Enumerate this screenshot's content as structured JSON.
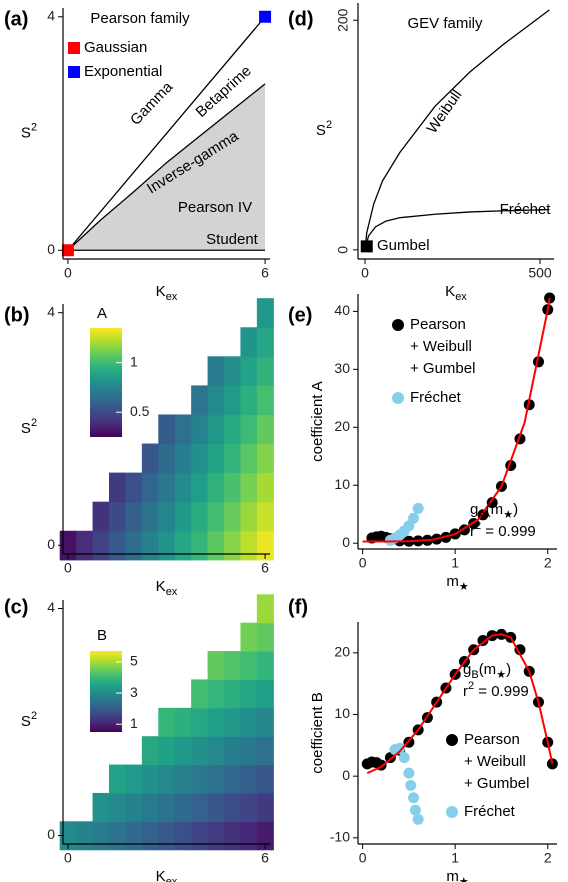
{
  "chart_data": [
    {
      "type": "line",
      "panel_label": "(a)",
      "title": "Pearson family",
      "xlabel": "K",
      "xlabel_sub": "ex",
      "ylabel": "S",
      "ylabel_sup": "2",
      "xlim": [
        -0.15,
        6.15
      ],
      "ylim": [
        -0.15,
        4.15
      ],
      "xticks": [
        0,
        6
      ],
      "yticks": [
        0,
        4
      ],
      "series": [
        {
          "color": "#000000",
          "x": [
            0,
            6
          ],
          "y": [
            0,
            4
          ]
        },
        {
          "color": "#000000",
          "fill": "#d3d3d3",
          "x": [
            0,
            1,
            2,
            3,
            4,
            5,
            6
          ],
          "y": [
            0,
            0.52,
            1.0,
            1.5,
            1.95,
            2.4,
            2.85
          ]
        },
        {
          "color": "#000000",
          "x": [
            0,
            6
          ],
          "y": [
            0,
            0
          ]
        }
      ],
      "points": [
        {
          "name": "Gaussian",
          "color": "#ff0000",
          "x": 0,
          "y": 0
        },
        {
          "name": "Exponential",
          "color": "#0000ff",
          "x": 6,
          "y": 4
        }
      ],
      "annotations": [
        "Gamma",
        "Betaprime",
        "Inverse-gamma",
        "Pearson IV",
        "Student"
      ]
    },
    {
      "type": "heatmap",
      "panel_label": "(b)",
      "xlabel": "K",
      "xlabel_sub": "ex",
      "ylabel": "S",
      "ylabel_sup": "2",
      "xlim": [
        -0.15,
        6.15
      ],
      "ylim": [
        -0.15,
        4.15
      ],
      "xticks": [
        0,
        6
      ],
      "yticks": [
        0,
        4
      ],
      "x": [
        0,
        0.5,
        1,
        1.5,
        2,
        2.5,
        3,
        3.5,
        4,
        4.5,
        5,
        5.5,
        6
      ],
      "y": [
        0,
        0.5,
        1,
        1.5,
        2,
        2.5,
        3,
        3.5,
        4
      ],
      "z": [
        [
          0.3,
          0.39,
          0.47,
          0.56,
          0.64,
          0.73,
          0.81,
          0.9,
          0.98,
          1.07,
          1.15,
          1.24,
          1.32
        ],
        [
          null,
          null,
          0.41,
          0.5,
          0.58,
          0.67,
          0.75,
          0.84,
          0.92,
          1.01,
          1.09,
          1.18,
          1.26
        ],
        [
          null,
          null,
          null,
          0.44,
          0.52,
          0.61,
          0.69,
          0.78,
          0.86,
          0.95,
          1.03,
          1.12,
          1.2
        ],
        [
          null,
          null,
          null,
          null,
          null,
          0.55,
          0.63,
          0.72,
          0.8,
          0.89,
          0.97,
          1.06,
          1.14
        ],
        [
          null,
          null,
          null,
          null,
          null,
          null,
          0.57,
          0.66,
          0.74,
          0.83,
          0.91,
          1.0,
          1.08
        ],
        [
          null,
          null,
          null,
          null,
          null,
          null,
          null,
          null,
          0.68,
          0.77,
          0.85,
          0.94,
          1.02
        ],
        [
          null,
          null,
          null,
          null,
          null,
          null,
          null,
          null,
          null,
          0.71,
          0.79,
          0.88,
          0.96
        ],
        [
          null,
          null,
          null,
          null,
          null,
          null,
          null,
          null,
          null,
          null,
          null,
          0.82,
          0.9
        ],
        [
          null,
          null,
          null,
          null,
          null,
          null,
          null,
          null,
          null,
          null,
          null,
          null,
          0.84
        ]
      ],
      "colormap": "viridis",
      "colorbar_title": "A",
      "zlim": [
        0.25,
        1.35
      ],
      "zticks": [
        0.5,
        1
      ]
    },
    {
      "type": "heatmap",
      "panel_label": "(c)",
      "xlabel": "K",
      "xlabel_sub": "ex",
      "ylabel": "S",
      "ylabel_sup": "2",
      "xlim": [
        -0.15,
        6.15
      ],
      "ylim": [
        -0.15,
        4.15
      ],
      "xticks": [
        0,
        6
      ],
      "yticks": [
        0,
        4
      ],
      "x": [
        0,
        0.5,
        1,
        1.5,
        2,
        2.5,
        3,
        3.5,
        4,
        4.5,
        5,
        5.5,
        6
      ],
      "y": [
        0,
        0.5,
        1,
        1.5,
        2,
        2.5,
        3,
        3.5,
        4
      ],
      "z": [
        [
          3,
          2.83,
          2.65,
          2.48,
          2.3,
          2.13,
          1.95,
          1.78,
          1.6,
          1.43,
          1.25,
          1.08,
          0.9
        ],
        [
          null,
          null,
          3.15,
          2.98,
          2.8,
          2.63,
          2.45,
          2.28,
          2.1,
          1.93,
          1.75,
          1.58,
          1.4
        ],
        [
          null,
          null,
          null,
          3.48,
          3.3,
          3.13,
          2.95,
          2.78,
          2.6,
          2.43,
          2.25,
          2.08,
          1.9
        ],
        [
          null,
          null,
          null,
          null,
          null,
          3.63,
          3.45,
          3.28,
          3.1,
          2.93,
          2.75,
          2.58,
          2.4
        ],
        [
          null,
          null,
          null,
          null,
          null,
          null,
          3.95,
          3.78,
          3.6,
          3.43,
          3.25,
          3.08,
          2.9
        ],
        [
          null,
          null,
          null,
          null,
          null,
          null,
          null,
          null,
          4.1,
          3.93,
          3.75,
          3.58,
          3.4
        ],
        [
          null,
          null,
          null,
          null,
          null,
          null,
          null,
          null,
          null,
          4.43,
          4.25,
          4.08,
          3.9
        ],
        [
          null,
          null,
          null,
          null,
          null,
          null,
          null,
          null,
          null,
          null,
          null,
          4.58,
          4.4
        ],
        [
          null,
          null,
          null,
          null,
          null,
          null,
          null,
          null,
          null,
          null,
          null,
          null,
          4.9
        ]
      ],
      "colormap": "viridis",
      "colorbar_title": "B",
      "zlim": [
        0.5,
        5.7
      ],
      "zticks": [
        1,
        3,
        5
      ]
    },
    {
      "type": "line",
      "panel_label": "(d)",
      "title": "GEV family",
      "xlabel": "K",
      "xlabel_sub": "ex",
      "ylabel": "S",
      "ylabel_sup": "2",
      "xlim": [
        -20,
        540
      ],
      "ylim": [
        -8,
        215
      ],
      "xticks": [
        0,
        500
      ],
      "yticks": [
        0,
        200
      ],
      "series": [
        {
          "name": "Weibull",
          "color": "#000000",
          "x": [
            0,
            5,
            25,
            50,
            100,
            200,
            300,
            400,
            527
          ],
          "y": [
            0,
            15,
            40,
            60,
            85,
            125,
            155,
            180,
            209
          ]
        },
        {
          "name": "Fréchet",
          "color": "#000000",
          "x": [
            0,
            10,
            30,
            60,
            100,
            200,
            300,
            400,
            527
          ],
          "y": [
            0,
            12,
            20,
            25,
            28,
            31,
            33,
            34,
            35
          ]
        }
      ],
      "points": [
        {
          "name": "Gumbel",
          "color": "#000000",
          "x": 5,
          "y": 3
        }
      ]
    },
    {
      "type": "scatter",
      "panel_label": "(e)",
      "xlabel": "m",
      "xlabel_sub": "★",
      "ylabel": "coefficient A",
      "xlim": [
        -0.05,
        2.1
      ],
      "ylim": [
        -1,
        43
      ],
      "xticks": [
        0,
        1,
        2
      ],
      "yticks": [
        0,
        10,
        20,
        30,
        40
      ],
      "series": [
        {
          "name": [
            "Pearson",
            "+ Weibull",
            "+ Gumbel"
          ],
          "color": "#000000",
          "x": [
            0.1,
            0.15,
            0.2,
            0.25,
            0.3,
            0.4,
            0.5,
            0.6,
            0.7,
            0.8,
            0.9,
            1.0,
            1.1,
            1.2,
            1.3,
            1.4,
            1.5,
            1.6,
            1.7,
            1.8,
            1.9,
            2.0,
            2.02
          ],
          "y": [
            0.9,
            1.1,
            1.2,
            1.0,
            0.8,
            0.4,
            0.34,
            0.4,
            0.5,
            0.7,
            1.0,
            1.6,
            2.3,
            3.4,
            4.9,
            7.0,
            9.8,
            13.4,
            18.0,
            23.9,
            31.3,
            40.3,
            42.3
          ]
        },
        {
          "name": "Fréchet",
          "color": "#87ceeb",
          "x": [
            0.3,
            0.35,
            0.4,
            0.45,
            0.5,
            0.55,
            0.6
          ],
          "y": [
            0.5,
            0.9,
            1.4,
            2.1,
            3.0,
            4.3,
            6.0
          ]
        }
      ],
      "fit": {
        "color": "#ff0000",
        "x": [
          0,
          0.25,
          0.5,
          0.75,
          1,
          1.25,
          1.5,
          1.75,
          2,
          2.02
        ],
        "y": [
          0.3,
          0.3,
          0.34,
          0.59,
          1.55,
          4.11,
          9.79,
          20.81,
          40.3,
          42.3
        ]
      },
      "fit_label": [
        "g",
        "A",
        "(m",
        "★",
        ")"
      ],
      "r2_label": [
        "r",
        "2",
        " = 0.999"
      ]
    },
    {
      "type": "scatter",
      "panel_label": "(f)",
      "xlabel": "m",
      "xlabel_sub": "★",
      "ylabel": "coefficient B",
      "xlim": [
        -0.05,
        2.1
      ],
      "ylim": [
        -11,
        25
      ],
      "xticks": [
        0,
        1,
        2
      ],
      "yticks": [
        -10,
        0,
        10,
        20
      ],
      "series": [
        {
          "name": [
            "Pearson",
            "+ Weibull",
            "+ Gumbel"
          ],
          "color": "#000000",
          "x": [
            0.05,
            0.1,
            0.15,
            0.2,
            0.3,
            0.4,
            0.5,
            0.6,
            0.7,
            0.8,
            0.9,
            1.0,
            1.1,
            1.2,
            1.3,
            1.4,
            1.5,
            1.6,
            1.7,
            1.8,
            1.9,
            2.0,
            2.05
          ],
          "y": [
            2,
            2.3,
            2.2,
            1.8,
            3,
            4.2,
            5.5,
            7.5,
            9.5,
            12,
            14.3,
            16.5,
            18.6,
            20.5,
            22,
            22.8,
            23,
            22.5,
            20.5,
            17,
            12,
            5.5,
            2
          ]
        },
        {
          "name": "Fréchet",
          "color": "#87ceeb",
          "x": [
            0.35,
            0.4,
            0.45,
            0.5,
            0.52,
            0.55,
            0.57,
            0.6
          ],
          "y": [
            4.3,
            4.5,
            3,
            0.5,
            -1.5,
            -3.5,
            -5.5,
            -7
          ]
        }
      ],
      "fit": {
        "color": "#ff0000",
        "x": [
          0.05,
          0.2,
          0.4,
          0.6,
          0.8,
          1.0,
          1.2,
          1.4,
          1.5,
          1.6,
          1.8,
          1.9,
          2.0,
          2.05
        ],
        "y": [
          0.5,
          1.5,
          4,
          7.5,
          12,
          16.5,
          20.5,
          22.8,
          23,
          22.5,
          17,
          12,
          5.5,
          2
        ]
      },
      "fit_label": [
        "g",
        "B",
        "(m",
        "★",
        ")"
      ],
      "r2_label": [
        "r",
        "2",
        " = 0.999"
      ]
    }
  ]
}
